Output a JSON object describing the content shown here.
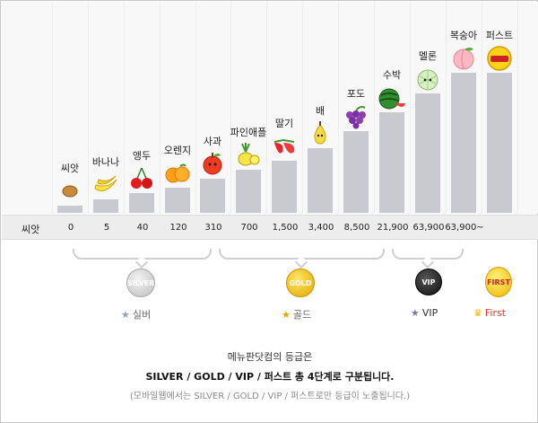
{
  "stages": [
    {
      "name": "씨앗",
      "threshold": "0",
      "icon": "seed-icon"
    },
    {
      "name": "바나나",
      "threshold": "5",
      "icon": "banana-icon"
    },
    {
      "name": "앵두",
      "threshold": "40",
      "icon": "cherry-icon"
    },
    {
      "name": "오렌지",
      "threshold": "120",
      "icon": "orange-icon"
    },
    {
      "name": "사과",
      "threshold": "310",
      "icon": "apple-icon"
    },
    {
      "name": "파인애플",
      "threshold": "700",
      "icon": "pineapple-icon"
    },
    {
      "name": "딸기",
      "threshold": "1,500",
      "icon": "strawberry-icon"
    },
    {
      "name": "배",
      "threshold": "3,400",
      "icon": "pear-icon"
    },
    {
      "name": "포도",
      "threshold": "8,500",
      "icon": "grape-icon"
    },
    {
      "name": "수박",
      "threshold": "21,900",
      "icon": "watermelon-icon"
    },
    {
      "name": "멜론",
      "threshold": "63,900",
      "icon": "melon-icon"
    },
    {
      "name": "복숭아",
      "threshold": "63,900~",
      "icon": "peach-icon"
    },
    {
      "name": "퍼스트",
      "threshold": "",
      "icon": "first-badge-icon"
    }
  ],
  "row_label": "씨앗",
  "grades": [
    {
      "label": "실버",
      "medal_text": "SILVER",
      "color": "#b9b9b9"
    },
    {
      "label": "골드",
      "medal_text": "GOLD",
      "color": "#e0a800"
    },
    {
      "label": "VIP",
      "medal_text": "VIP",
      "color": "#333333"
    },
    {
      "label": "First",
      "medal_text": "FIRST",
      "color": "#f0b400"
    }
  ],
  "info": {
    "line1": "메뉴판닷컴의 등급은",
    "line2": "SILVER / GOLD / VIP / 퍼스트 총 4단계로 구분됩니다.",
    "line3": "(모바일웹에서는 SILVER / GOLD / VIP / 퍼스트로만 등급이 노출됩니다.)"
  },
  "colors": {
    "bar": "#c9cad0",
    "value_row_bg": "#ededed",
    "first_text": "#e8312a"
  }
}
